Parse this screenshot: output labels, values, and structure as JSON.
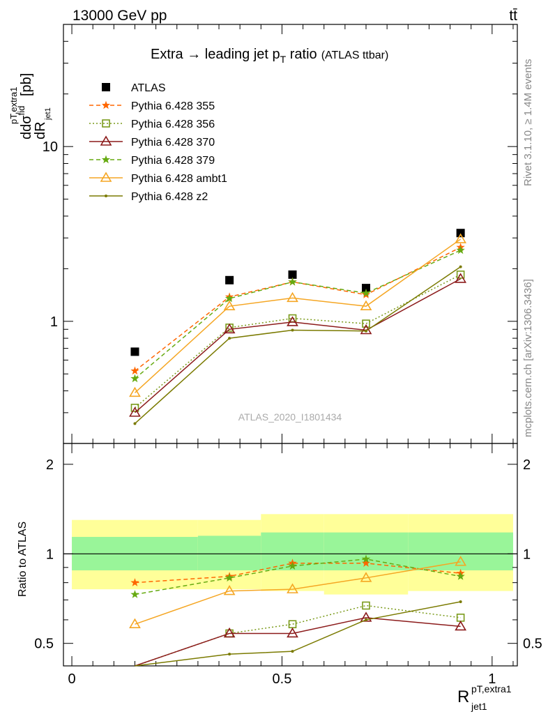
{
  "header": {
    "energy_label": "13000 GeV pp",
    "process_label": "tt̄"
  },
  "side_labels": {
    "rivet": "Rivet 3.1.10, ≥ 1.4M events",
    "source": "mcplots.cern.ch [arXiv:1306.3436]"
  },
  "chart_data": [
    {
      "type": "line",
      "title_main": "Extra → leading jet p",
      "title_sub": "T",
      "title_after": " ratio",
      "title_tag": "(ATLAS ttbar)",
      "ylabel_pre": "dσ",
      "ylabel_sup": "fid",
      "ylabel_sub": "jet1",
      "ylabel_unit": "[pb]",
      "ylabel_num": "pT,extra1",
      "yscale": "log",
      "ylim": [
        0.2,
        50
      ],
      "xlim": [
        -0.02,
        1.06
      ],
      "yticks": [
        {
          "value": 1,
          "label": "1"
        },
        {
          "value": 10,
          "label": "10"
        }
      ],
      "analysis_label": "ATLAS_2020_I1801434",
      "legend_position": "top-left",
      "x": [
        0.15,
        0.375,
        0.525,
        0.7,
        0.925
      ],
      "series": [
        {
          "name": "ATLAS",
          "color": "#000000",
          "marker": "square",
          "dash": "none",
          "values": [
            0.67,
            1.72,
            1.85,
            1.55,
            3.2
          ]
        },
        {
          "name": "Pythia 6.428 355",
          "color": "#ff6600",
          "marker": "star",
          "dash": "dashed",
          "values": [
            0.52,
            1.38,
            1.68,
            1.42,
            2.65
          ]
        },
        {
          "name": "Pythia 6.428 356",
          "color": "#7a9a1a",
          "marker": "open-square",
          "dash": "dotted",
          "values": [
            0.32,
            0.92,
            1.04,
            0.97,
            1.85
          ]
        },
        {
          "name": "Pythia 6.428 370",
          "color": "#8b1a1a",
          "marker": "open-triangle",
          "dash": "solid",
          "values": [
            0.3,
            0.9,
            0.99,
            0.89,
            1.75
          ]
        },
        {
          "name": "Pythia 6.428 379",
          "color": "#66aa11",
          "marker": "star",
          "dash": "dashed",
          "values": [
            0.47,
            1.35,
            1.68,
            1.45,
            2.55
          ]
        },
        {
          "name": "Pythia 6.428 ambt1",
          "color": "#f5a623",
          "marker": "open-triangle",
          "dash": "solid",
          "values": [
            0.39,
            1.22,
            1.36,
            1.22,
            2.95
          ]
        },
        {
          "name": "Pythia 6.428 z2",
          "color": "#7a7a00",
          "marker": "dot",
          "dash": "solid",
          "values": [
            0.26,
            0.8,
            0.89,
            0.88,
            2.05
          ]
        }
      ]
    },
    {
      "type": "line",
      "ylabel": "Ratio to ATLAS",
      "xlabel_main": "R",
      "xlabel_sup": "pT,extra1",
      "xlabel_sub": "jet1",
      "yscale": "log",
      "ylim": [
        0.42,
        2.35
      ],
      "xlim": [
        -0.02,
        1.06
      ],
      "xticks": [
        {
          "value": 0,
          "label": "0"
        },
        {
          "value": 0.5,
          "label": "0.5"
        },
        {
          "value": 1,
          "label": "1"
        }
      ],
      "yticks": [
        {
          "value": 0.5,
          "label": "0.5"
        },
        {
          "value": 1,
          "label": "1"
        },
        {
          "value": 2,
          "label": "2"
        }
      ],
      "bands": [
        {
          "x0": 0.0,
          "x1": 0.3,
          "yellow": [
            0.76,
            1.3
          ],
          "green": [
            0.88,
            1.14
          ]
        },
        {
          "x0": 0.3,
          "x1": 0.45,
          "yellow": [
            0.76,
            1.3
          ],
          "green": [
            0.88,
            1.15
          ]
        },
        {
          "x0": 0.45,
          "x1": 0.6,
          "yellow": [
            0.75,
            1.36
          ],
          "green": [
            0.88,
            1.18
          ]
        },
        {
          "x0": 0.6,
          "x1": 0.8,
          "yellow": [
            0.73,
            1.36
          ],
          "green": [
            0.88,
            1.18
          ]
        },
        {
          "x0": 0.8,
          "x1": 1.05,
          "yellow": [
            0.75,
            1.36
          ],
          "green": [
            0.88,
            1.18
          ]
        }
      ],
      "x": [
        0.15,
        0.375,
        0.525,
        0.7,
        0.925
      ],
      "series": [
        {
          "name": "Pythia 6.428 355",
          "values": [
            0.8,
            0.84,
            0.93,
            0.93,
            0.86
          ]
        },
        {
          "name": "Pythia 6.428 356",
          "values": [
            0.42,
            0.54,
            0.58,
            0.67,
            0.61
          ]
        },
        {
          "name": "Pythia 6.428 370",
          "values": [
            0.41,
            0.54,
            0.54,
            0.61,
            0.57
          ]
        },
        {
          "name": "Pythia 6.428 379",
          "values": [
            0.73,
            0.83,
            0.91,
            0.96,
            0.84
          ]
        },
        {
          "name": "Pythia 6.428 ambt1",
          "values": [
            0.58,
            0.75,
            0.76,
            0.83,
            0.94
          ]
        },
        {
          "name": "Pythia 6.428 z2",
          "values": [
            0.35,
            0.46,
            0.47,
            0.6,
            0.69
          ]
        }
      ]
    }
  ]
}
